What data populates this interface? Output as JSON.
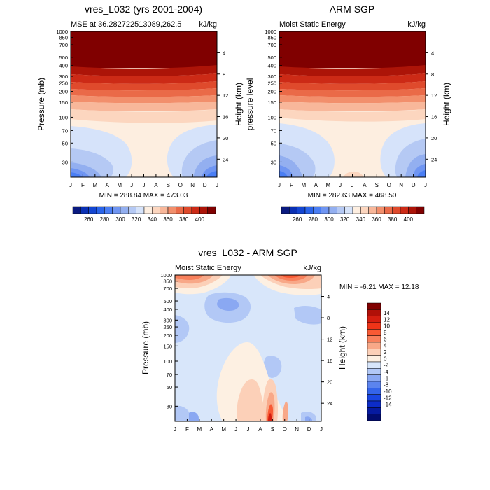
{
  "chart_data": [
    {
      "type": "contour",
      "title": "vres_L032 (yrs 2001-2004)",
      "left_label": "MSE at 36.282722513089,262.5",
      "right_label": "kJ/kg",
      "ylabel": "Pressure (mb)",
      "ylabel_right": "Height (km)",
      "x_ticks": [
        "J",
        "F",
        "M",
        "A",
        "M",
        "J",
        "J",
        "A",
        "S",
        "O",
        "N",
        "D",
        "J"
      ],
      "p_ticks": [
        30,
        50,
        70,
        100,
        150,
        200,
        250,
        300,
        400,
        500,
        700,
        850,
        1000
      ],
      "h_ticks": [
        4,
        8,
        12,
        16,
        20,
        24
      ],
      "ylim_mb": [
        1000,
        20
      ],
      "stats": "MIN = 288.84   MAX = 473.03",
      "colorbar": {
        "orientation": "horizontal",
        "labels": [
          "260",
          "280",
          "300",
          "320",
          "340",
          "360",
          "380",
          "400"
        ],
        "colors": [
          "#0a1a80",
          "#0a30b4",
          "#1446d2",
          "#2a64ea",
          "#4a7ef4",
          "#6f95f2",
          "#93aff0",
          "#b5c9f4",
          "#d6e3fa",
          "#fdeee0",
          "#fcd6bf",
          "#f8b79a",
          "#f28f6c",
          "#ea6a48",
          "#df4a2c",
          "#cc2a16",
          "#ac1408",
          "#800000"
        ]
      }
    },
    {
      "type": "contour",
      "title": "ARM SGP",
      "left_label": "Moist Static Energy",
      "right_label": "kJ/kg",
      "ylabel": "pressure level",
      "ylabel_right": "Height (km)",
      "x_ticks": [
        "J",
        "F",
        "M",
        "A",
        "M",
        "J",
        "J",
        "A",
        "S",
        "O",
        "N",
        "D",
        "J"
      ],
      "p_ticks": [
        30,
        50,
        70,
        100,
        150,
        200,
        250,
        300,
        400,
        500,
        700,
        850,
        1000
      ],
      "h_ticks": [
        4,
        8,
        12,
        16,
        20,
        24
      ],
      "ylim_mb": [
        1000,
        20
      ],
      "stats": "MIN = 282.63   MAX = 468.50",
      "colorbar": {
        "orientation": "horizontal",
        "labels": [
          "260",
          "280",
          "300",
          "320",
          "340",
          "360",
          "380",
          "400"
        ],
        "colors": [
          "#0a1a80",
          "#0a30b4",
          "#1446d2",
          "#2a64ea",
          "#4a7ef4",
          "#6f95f2",
          "#93aff0",
          "#b5c9f4",
          "#d6e3fa",
          "#fdeee0",
          "#fcd6bf",
          "#f8b79a",
          "#f28f6c",
          "#ea6a48",
          "#df4a2c",
          "#cc2a16",
          "#ac1408",
          "#800000"
        ]
      }
    },
    {
      "type": "contour",
      "title": "vres_L032 - ARM SGP",
      "left_label": "Moist Static Energy",
      "right_label": "kJ/kg",
      "ylabel": "Pressure (mb)",
      "ylabel_right": "Height (km)",
      "x_ticks": [
        "J",
        "F",
        "M",
        "A",
        "M",
        "J",
        "J",
        "A",
        "S",
        "O",
        "N",
        "D",
        "J"
      ],
      "p_ticks": [
        30,
        50,
        70,
        100,
        150,
        200,
        250,
        300,
        400,
        500,
        700,
        850,
        1000
      ],
      "h_ticks": [
        4,
        8,
        12,
        16,
        20,
        24
      ],
      "ylim_mb": [
        1000,
        20
      ],
      "stats": "MIN =  -6.21   MAX =  12.18",
      "colorbar": {
        "orientation": "vertical",
        "labels": [
          "14",
          "12",
          "10",
          "8",
          "6",
          "4",
          "2",
          "0",
          "-2",
          "-4",
          "-6",
          "-8",
          "-10",
          "-12",
          "-14"
        ],
        "colors": [
          "#800000",
          "#b01008",
          "#d41e10",
          "#ee3418",
          "#f85a34",
          "#f8805c",
          "#f8a888",
          "#fcd0b8",
          "#fdf0e2",
          "#d8e6fa",
          "#b2c8f6",
          "#8aa8f2",
          "#5c84ee",
          "#3464ea",
          "#1a46e2",
          "#0c2cc8",
          "#061aa0",
          "#020c70"
        ]
      }
    }
  ]
}
